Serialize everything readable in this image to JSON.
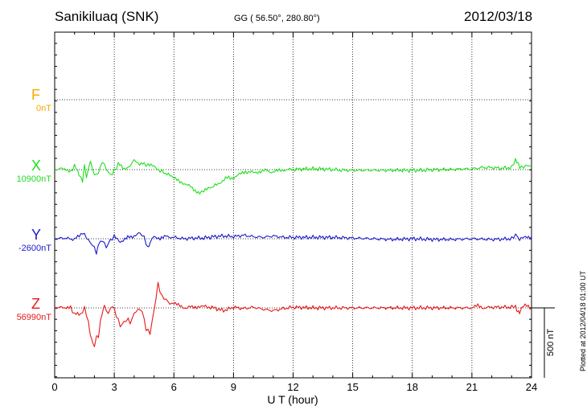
{
  "header": {
    "station": "Sanikiluaq (SNK)",
    "coords": "GG ( 56.50°, 280.80°)",
    "date": "2012/03/18"
  },
  "plotted_note": "Plotted at 2012/04/18 01:00 UT",
  "scale_bar_label": "500 nT",
  "components": [
    {
      "name": "F",
      "baseline": "0nT",
      "color": "#f5a800"
    },
    {
      "name": "X",
      "baseline": "10900nT",
      "color": "#1fe01f"
    },
    {
      "name": "Y",
      "baseline": "-2600nT",
      "color": "#1a1acc"
    },
    {
      "name": "Z",
      "baseline": "56990nT",
      "color": "#e61a1a"
    }
  ],
  "chart_data": {
    "type": "line",
    "xlabel": "U T (hour)",
    "xlim": [
      0,
      24
    ],
    "xticks": [
      "0",
      "3",
      "6",
      "9",
      "12",
      "15",
      "18",
      "21",
      "24"
    ],
    "grid": true,
    "unit": "nT",
    "series": [
      {
        "name": "X",
        "color": "#1fe01f",
        "baseline_nT": 10900,
        "x": [
          0,
          0.5,
          0.8,
          1.0,
          1.3,
          1.4,
          1.5,
          1.6,
          1.8,
          2.0,
          2.2,
          2.4,
          2.6,
          2.8,
          3.0,
          3.2,
          3.5,
          3.8,
          4.0,
          4.2,
          4.5,
          4.7,
          5.0,
          5.3,
          5.5,
          5.8,
          6.0,
          6.3,
          6.6,
          7.0,
          7.3,
          7.5,
          7.8,
          8.0,
          8.3,
          8.6,
          9.0,
          9.3,
          9.6,
          10.0,
          10.3,
          10.6,
          11.0,
          11.3,
          11.6,
          12.0,
          12.5,
          13.0,
          13.5,
          14.0,
          14.5,
          15.0,
          16.0,
          17.0,
          18.0,
          18.5,
          19.0,
          20.0,
          20.5,
          21.0,
          21.5,
          22.0,
          22.5,
          23.0,
          23.2,
          23.3,
          23.4,
          23.6,
          23.8,
          24.0
        ],
        "nT": [
          0,
          10,
          -20,
          30,
          -60,
          -80,
          25,
          -50,
          60,
          -40,
          -25,
          60,
          5,
          -40,
          -10,
          40,
          5,
          30,
          70,
          45,
          40,
          30,
          25,
          -5,
          -20,
          -40,
          -60,
          -90,
          -100,
          -140,
          -170,
          -150,
          -135,
          -120,
          -95,
          -60,
          -60,
          -35,
          -15,
          -20,
          -15,
          -5,
          -20,
          -5,
          0,
          0,
          5,
          5,
          5,
          0,
          -5,
          -5,
          -5,
          -5,
          -5,
          -5,
          0,
          0,
          5,
          5,
          15,
          15,
          10,
          15,
          75,
          50,
          15,
          20,
          30,
          25
        ]
      },
      {
        "name": "Y",
        "color": "#1a1acc",
        "baseline_nT": -2600,
        "x": [
          0,
          0.5,
          1.0,
          1.4,
          1.6,
          1.8,
          2.0,
          2.1,
          2.2,
          2.4,
          2.6,
          2.8,
          3.0,
          3.3,
          3.6,
          4.0,
          4.3,
          4.5,
          4.7,
          4.8,
          5.0,
          5.3,
          5.6,
          6.0,
          6.5,
          7.0,
          7.5,
          8.0,
          8.5,
          9.0,
          9.5,
          10.0,
          10.5,
          11.0,
          11.5,
          12.0,
          13.0,
          14.0,
          15.0,
          16.0,
          17.0,
          18.0,
          19.0,
          20.0,
          21.0,
          22.0,
          23.0,
          23.2,
          23.4,
          23.7,
          24.0
        ],
        "nT": [
          0,
          5,
          -5,
          45,
          10,
          -30,
          -60,
          -110,
          -40,
          -10,
          -60,
          -10,
          15,
          -20,
          5,
          20,
          40,
          10,
          -70,
          -20,
          15,
          5,
          15,
          10,
          0,
          5,
          5,
          15,
          20,
          15,
          25,
          15,
          10,
          20,
          10,
          10,
          10,
          10,
          5,
          0,
          -5,
          0,
          -5,
          -5,
          0,
          -5,
          0,
          30,
          -5,
          10,
          15
        ]
      },
      {
        "name": "Z",
        "color": "#e61a1a",
        "baseline_nT": 56990,
        "x": [
          0,
          0.5,
          0.8,
          1.0,
          1.3,
          1.5,
          1.7,
          1.8,
          1.9,
          2.0,
          2.1,
          2.2,
          2.3,
          2.4,
          2.5,
          2.7,
          2.9,
          3.1,
          3.3,
          3.5,
          3.7,
          3.8,
          4.0,
          4.2,
          4.4,
          4.6,
          4.8,
          5.0,
          5.2,
          5.4,
          5.6,
          5.8,
          6.0,
          6.3,
          6.6,
          7.0,
          7.3,
          7.6,
          8.0,
          8.5,
          9.0,
          9.5,
          10.0,
          10.5,
          11.0,
          11.5,
          12.0,
          13.0,
          14.0,
          15.0,
          16.0,
          17.0,
          18.0,
          19.0,
          20.0,
          21.0,
          21.3,
          21.6,
          22.0,
          23.0,
          23.2,
          23.3,
          23.4,
          23.6,
          24.0
        ],
        "nT": [
          0,
          5,
          0,
          -45,
          -50,
          0,
          -100,
          -200,
          -240,
          -280,
          -200,
          -210,
          -100,
          -30,
          10,
          -40,
          20,
          -50,
          -130,
          -100,
          -80,
          -110,
          -40,
          -10,
          -20,
          -150,
          -180,
          -20,
          170,
          80,
          60,
          30,
          30,
          15,
          0,
          10,
          5,
          10,
          0,
          -20,
          5,
          -5,
          5,
          -10,
          -20,
          -5,
          5,
          0,
          0,
          0,
          0,
          0,
          0,
          0,
          0,
          0,
          15,
          0,
          5,
          5,
          15,
          -30,
          -35,
          20,
          0
        ]
      }
    ]
  }
}
